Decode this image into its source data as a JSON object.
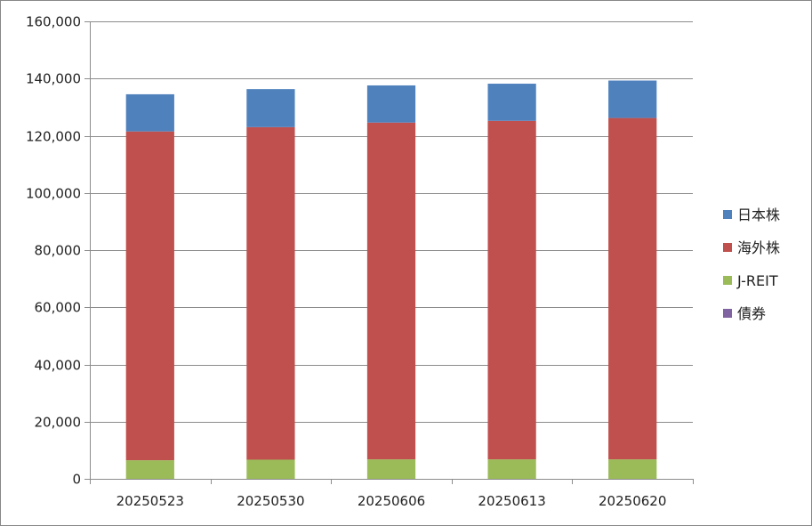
{
  "chart_data": {
    "type": "bar",
    "stacked": true,
    "categories": [
      "20250523",
      "20250530",
      "20250606",
      "20250613",
      "20250620"
    ],
    "series": [
      {
        "name": "債券",
        "color": "#8064a2",
        "values": [
          0,
          0,
          0,
          0,
          0
        ]
      },
      {
        "name": "J-REIT",
        "color": "#9bbb59",
        "values": [
          6500,
          6700,
          6800,
          6800,
          6800
        ]
      },
      {
        "name": "海外株",
        "color": "#c0504d",
        "values": [
          115000,
          116300,
          117800,
          118400,
          119400
        ]
      },
      {
        "name": "日本株",
        "color": "#4f81bd",
        "values": [
          13000,
          13300,
          13000,
          13000,
          13100
        ]
      }
    ],
    "legend_order": [
      "日本株",
      "海外株",
      "J-REIT",
      "債券"
    ],
    "ylim": [
      0,
      160000
    ],
    "yticks": [
      0,
      20000,
      40000,
      60000,
      80000,
      100000,
      120000,
      140000,
      160000
    ],
    "ytick_labels": [
      "0",
      "20,000",
      "40,000",
      "60,000",
      "80,000",
      "100,000",
      "120,000",
      "140,000",
      "160,000"
    ],
    "grid": true,
    "legend_position": "right",
    "title": "",
    "xlabel": "",
    "ylabel": ""
  }
}
